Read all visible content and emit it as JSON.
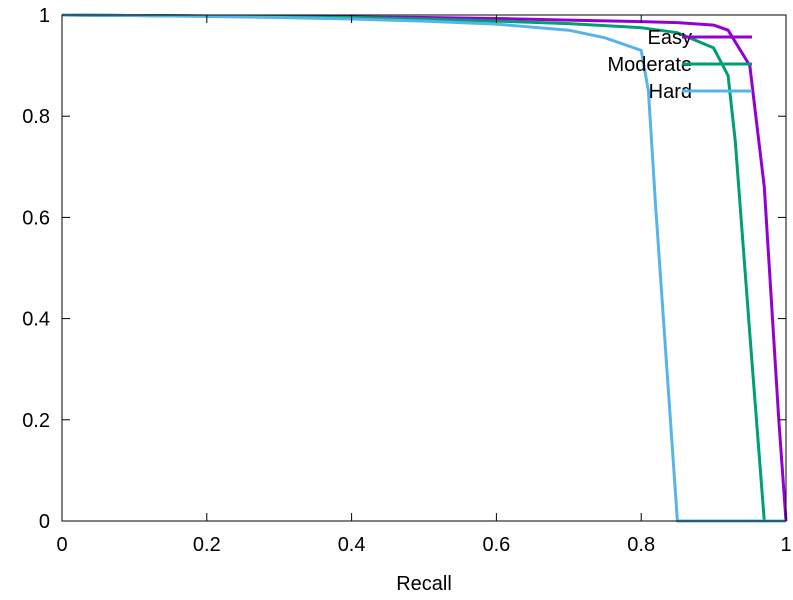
{
  "chart_data": {
    "type": "line",
    "title": "",
    "xlabel": "Recall",
    "ylabel": "",
    "xlim": [
      0,
      1
    ],
    "ylim": [
      0,
      1
    ],
    "grid": false,
    "legend_position": "top-right",
    "x_ticks": [
      0,
      0.2,
      0.4,
      0.6,
      0.8,
      1
    ],
    "x_tick_labels": [
      "0",
      "0.2",
      "0.4",
      "0.6",
      "0.8",
      "1"
    ],
    "y_ticks": [
      0,
      0.2,
      0.4,
      0.6,
      0.8,
      1
    ],
    "y_tick_labels": [
      "0",
      "0.2",
      "0.4",
      "0.6",
      "0.8",
      "1"
    ],
    "series": [
      {
        "name": "Easy",
        "color": "#9400d3",
        "x": [
          0,
          0.1,
          0.2,
          0.3,
          0.4,
          0.5,
          0.6,
          0.7,
          0.8,
          0.85,
          0.9,
          0.92,
          0.95,
          0.97,
          0.99,
          1.0
        ],
        "y": [
          1.0,
          0.999,
          0.998,
          0.997,
          0.996,
          0.995,
          0.993,
          0.99,
          0.987,
          0.985,
          0.98,
          0.97,
          0.9,
          0.66,
          0.2,
          0
        ]
      },
      {
        "name": "Moderate",
        "color": "#009e73",
        "x": [
          0,
          0.1,
          0.2,
          0.3,
          0.4,
          0.5,
          0.6,
          0.7,
          0.8,
          0.85,
          0.9,
          0.92,
          0.93,
          0.95,
          0.97,
          1.0
        ],
        "y": [
          1.0,
          0.999,
          0.998,
          0.996,
          0.995,
          0.992,
          0.988,
          0.983,
          0.975,
          0.965,
          0.935,
          0.88,
          0.75,
          0.37,
          0,
          0
        ]
      },
      {
        "name": "Hard",
        "color": "#56b4e9",
        "x": [
          0,
          0.1,
          0.2,
          0.3,
          0.4,
          0.5,
          0.6,
          0.7,
          0.75,
          0.8,
          0.81,
          0.82,
          0.85,
          0.9,
          0.95,
          1.0
        ],
        "y": [
          1.0,
          0.999,
          0.997,
          0.995,
          0.992,
          0.988,
          0.982,
          0.97,
          0.955,
          0.93,
          0.85,
          0.62,
          0,
          0,
          0,
          0
        ]
      }
    ]
  }
}
